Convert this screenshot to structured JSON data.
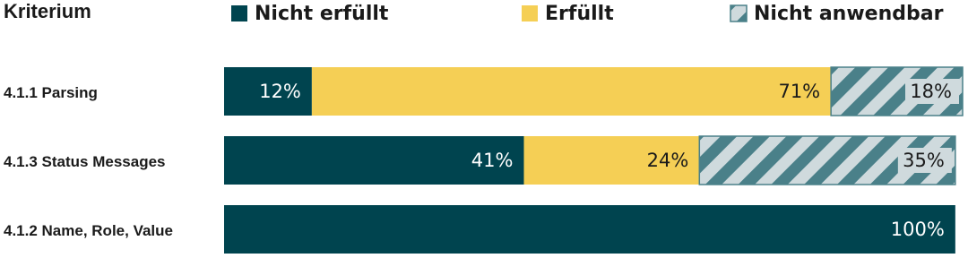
{
  "chart_data": {
    "type": "stacked-bar-horizontal",
    "category_header": "Kriterium",
    "categories": [
      "4.1.1 Parsing",
      "4.1.3 Status Messages",
      "4.1.2 Name, Role, Value"
    ],
    "xlim": [
      0,
      101
    ],
    "series": [
      {
        "name": "Nicht erfüllt",
        "color": "#00444f",
        "label_color": "#ffffff",
        "hatch": false,
        "values": [
          12,
          41,
          100
        ],
        "value_labels": [
          "12%",
          "41%",
          "100%"
        ]
      },
      {
        "name": "Erfüllt",
        "color": "#f5cf55",
        "label_color": "#1a1a1a",
        "hatch": false,
        "values": [
          71,
          24,
          0
        ],
        "value_labels": [
          "71%",
          "24%",
          null
        ]
      },
      {
        "name": "Nicht anwendbar",
        "color": "#cfdadd",
        "stripe_color": "#4a8089",
        "label_color": "#1a1a1a",
        "hatch": true,
        "values": [
          18,
          35,
          0
        ],
        "value_labels": [
          "18%",
          "35%",
          null
        ]
      }
    ]
  }
}
